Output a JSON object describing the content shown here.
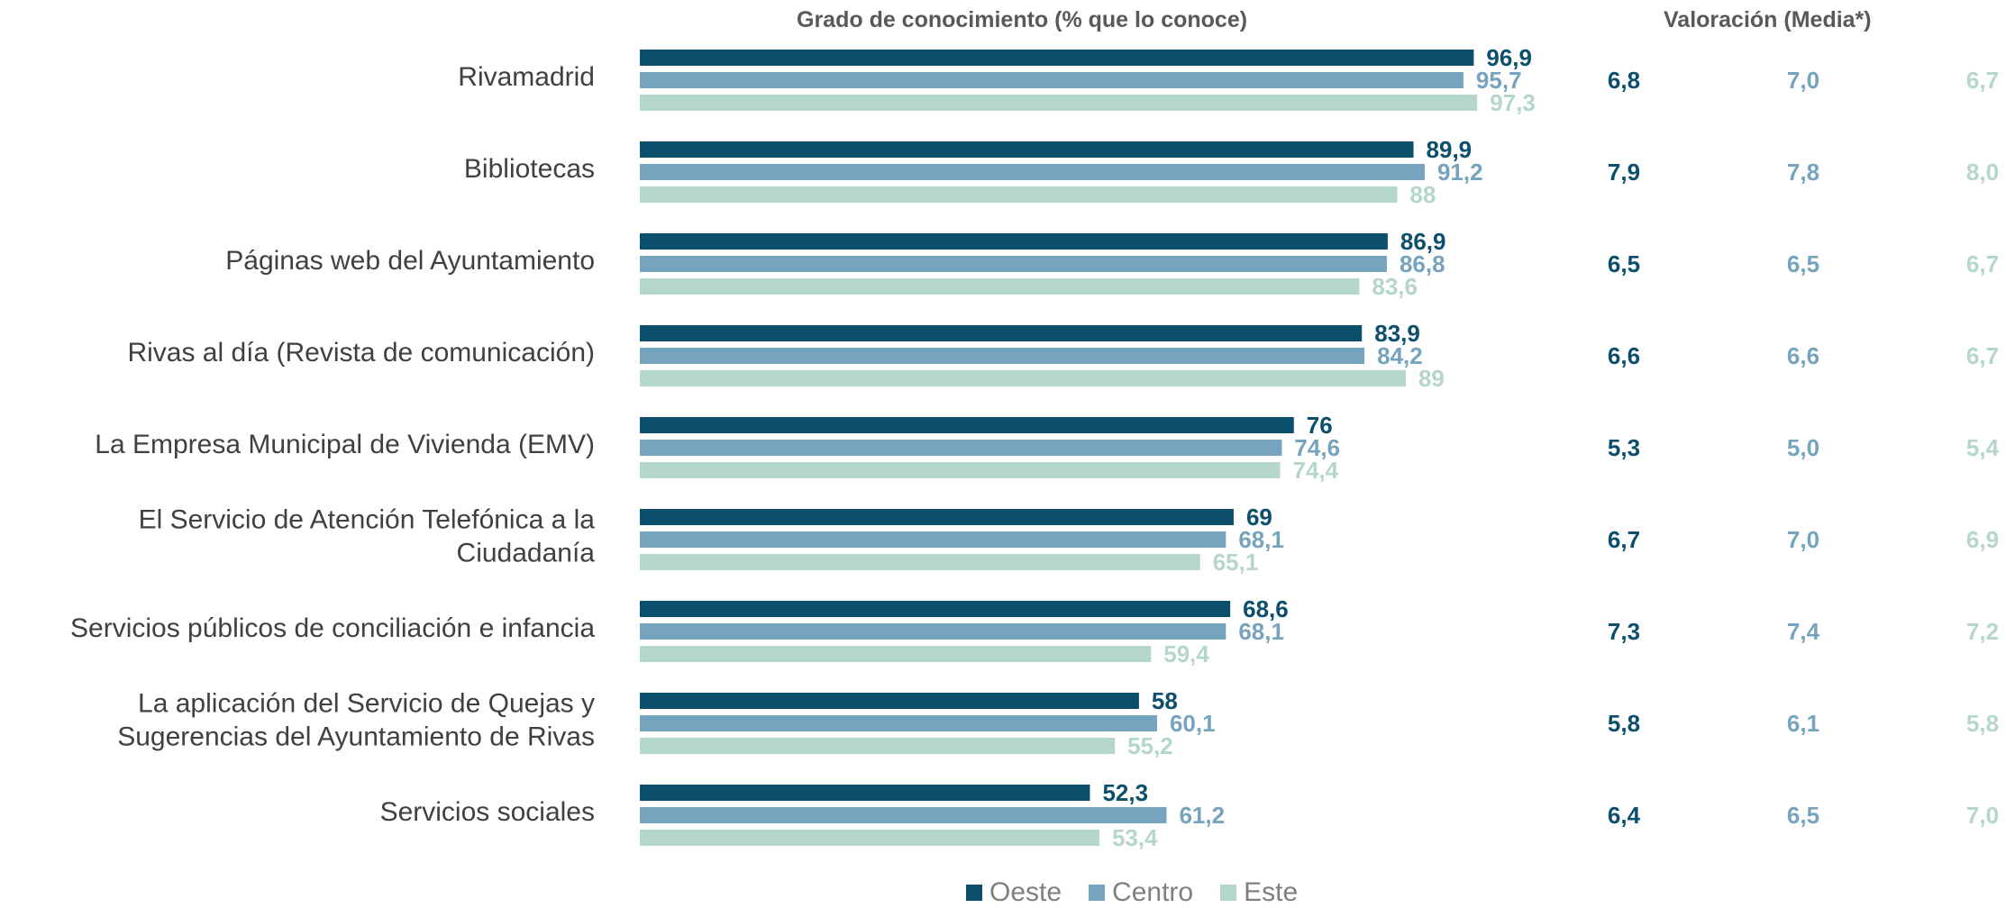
{
  "chart_data": {
    "type": "bar",
    "orientation": "horizontal",
    "title": "Grado de conocimiento (% que lo conoce)",
    "title_right": "Valoración (Media*)",
    "categories": [
      "Rivamadrid",
      "Bibliotecas",
      "Páginas web del Ayuntamiento",
      "Rivas al día (Revista de comunicación)",
      "La Empresa Municipal de Vivienda (EMV)",
      "El Servicio de Atención Telefónica a la Ciudadanía",
      "Servicios públicos de conciliación e infancia",
      "La aplicación del Servicio de Quejas y Sugerencias del Ayuntamiento de Rivas",
      "Servicios sociales"
    ],
    "category_lines": [
      [
        "Rivamadrid"
      ],
      [
        "Bibliotecas"
      ],
      [
        "Páginas web del Ayuntamiento"
      ],
      [
        "Rivas al día (Revista de comunicación)"
      ],
      [
        "La Empresa Municipal de Vivienda (EMV)"
      ],
      [
        "El Servicio de Atención Telefónica a la",
        "Ciudadanía"
      ],
      [
        "Servicios públicos de conciliación e infancia"
      ],
      [
        "La aplicación del Servicio de Quejas y",
        "Sugerencias del Ayuntamiento de Rivas"
      ],
      [
        "Servicios sociales"
      ]
    ],
    "series": [
      {
        "name": "Oeste",
        "color": "#0b4f6c",
        "values": [
          96.9,
          89.9,
          86.9,
          83.9,
          76,
          69,
          68.6,
          58,
          52.3
        ],
        "labels": [
          "96,9",
          "89,9",
          "86,9",
          "83,9",
          "76",
          "69",
          "68,6",
          "58",
          "52,3"
        ],
        "valoracion": [
          "6,8",
          "7,9",
          "6,5",
          "6,6",
          "5,3",
          "6,7",
          "7,3",
          "5,8",
          "6,4"
        ]
      },
      {
        "name": "Centro",
        "color": "#76a3bd",
        "values": [
          95.7,
          91.2,
          86.8,
          84.2,
          74.6,
          68.1,
          68.1,
          60.1,
          61.2
        ],
        "labels": [
          "95,7",
          "91,2",
          "86,8",
          "84,2",
          "74,6",
          "68,1",
          "68,1",
          "60,1",
          "61,2"
        ],
        "valoracion": [
          "7,0",
          "7,8",
          "6,5",
          "6,6",
          "5,0",
          "7,0",
          "7,4",
          "6,1",
          "6,5"
        ]
      },
      {
        "name": "Este",
        "color": "#b5d6cb",
        "values": [
          97.3,
          88,
          83.6,
          89,
          74.4,
          65.1,
          59.4,
          55.2,
          53.4
        ],
        "labels": [
          "97,3",
          "88",
          "83,6",
          "89",
          "74,4",
          "65,1",
          "59,4",
          "55,2",
          "53,4"
        ],
        "valoracion": [
          "6,7",
          "8,0",
          "6,7",
          "6,7",
          "5,4",
          "6,9",
          "7,2",
          "5,8",
          "7,0"
        ]
      }
    ],
    "xlim": [
      0,
      100
    ],
    "grid": false,
    "legend": "bottom"
  }
}
